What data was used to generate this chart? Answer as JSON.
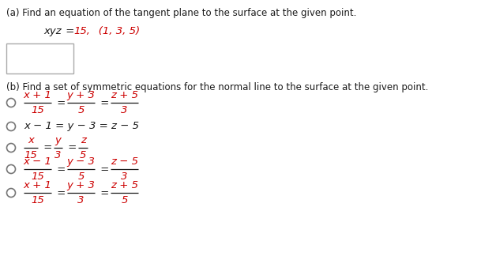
{
  "bg_color": "#ffffff",
  "text_color": "#1a1a1a",
  "red_color": "#cc0000",
  "label_color": "#333333",
  "part_a_label": "(a) Find an equation of the tangent plane to the surface at the given point.",
  "part_b_label": "(b) Find a set of symmetric equations for the normal line to the surface at the given point.",
  "options": [
    {
      "nums": [
        "x + 1",
        "y + 3",
        "z + 5"
      ],
      "dens": [
        "15",
        "5",
        "3"
      ],
      "type": "frac"
    },
    {
      "text": "x − 1 = y − 3 = z − 5",
      "type": "plain"
    },
    {
      "nums": [
        "x",
        "y",
        "z"
      ],
      "dens": [
        "15",
        "3",
        "5"
      ],
      "type": "frac"
    },
    {
      "nums": [
        "x − 1",
        "y − 3",
        "z − 5"
      ],
      "dens": [
        "15",
        "5",
        "3"
      ],
      "type": "frac"
    },
    {
      "nums": [
        "x + 1",
        "y + 3",
        "z + 5"
      ],
      "dens": [
        "15",
        "3",
        "5"
      ],
      "type": "frac"
    }
  ]
}
